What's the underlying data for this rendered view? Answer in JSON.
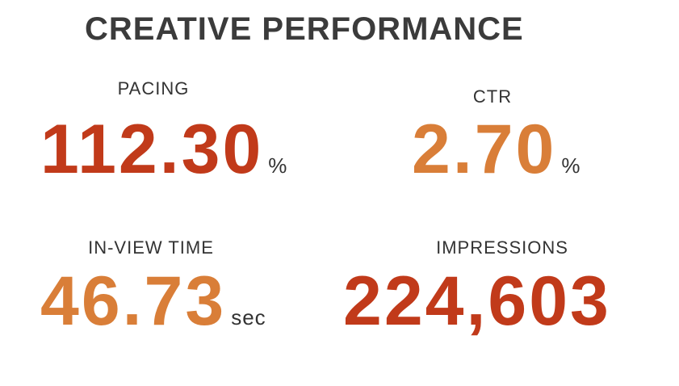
{
  "header": {
    "title": "CREATIVE PERFORMANCE"
  },
  "metrics": [
    {
      "label": "PACING",
      "value": "112.30",
      "unit": "%"
    },
    {
      "label": "CTR",
      "value": "2.70",
      "unit": "%"
    },
    {
      "label": "IN-VIEW TIME",
      "value": "46.73",
      "unit": "sec"
    },
    {
      "label": "IMPRESSIONS",
      "value": "224,603"
    }
  ]
}
